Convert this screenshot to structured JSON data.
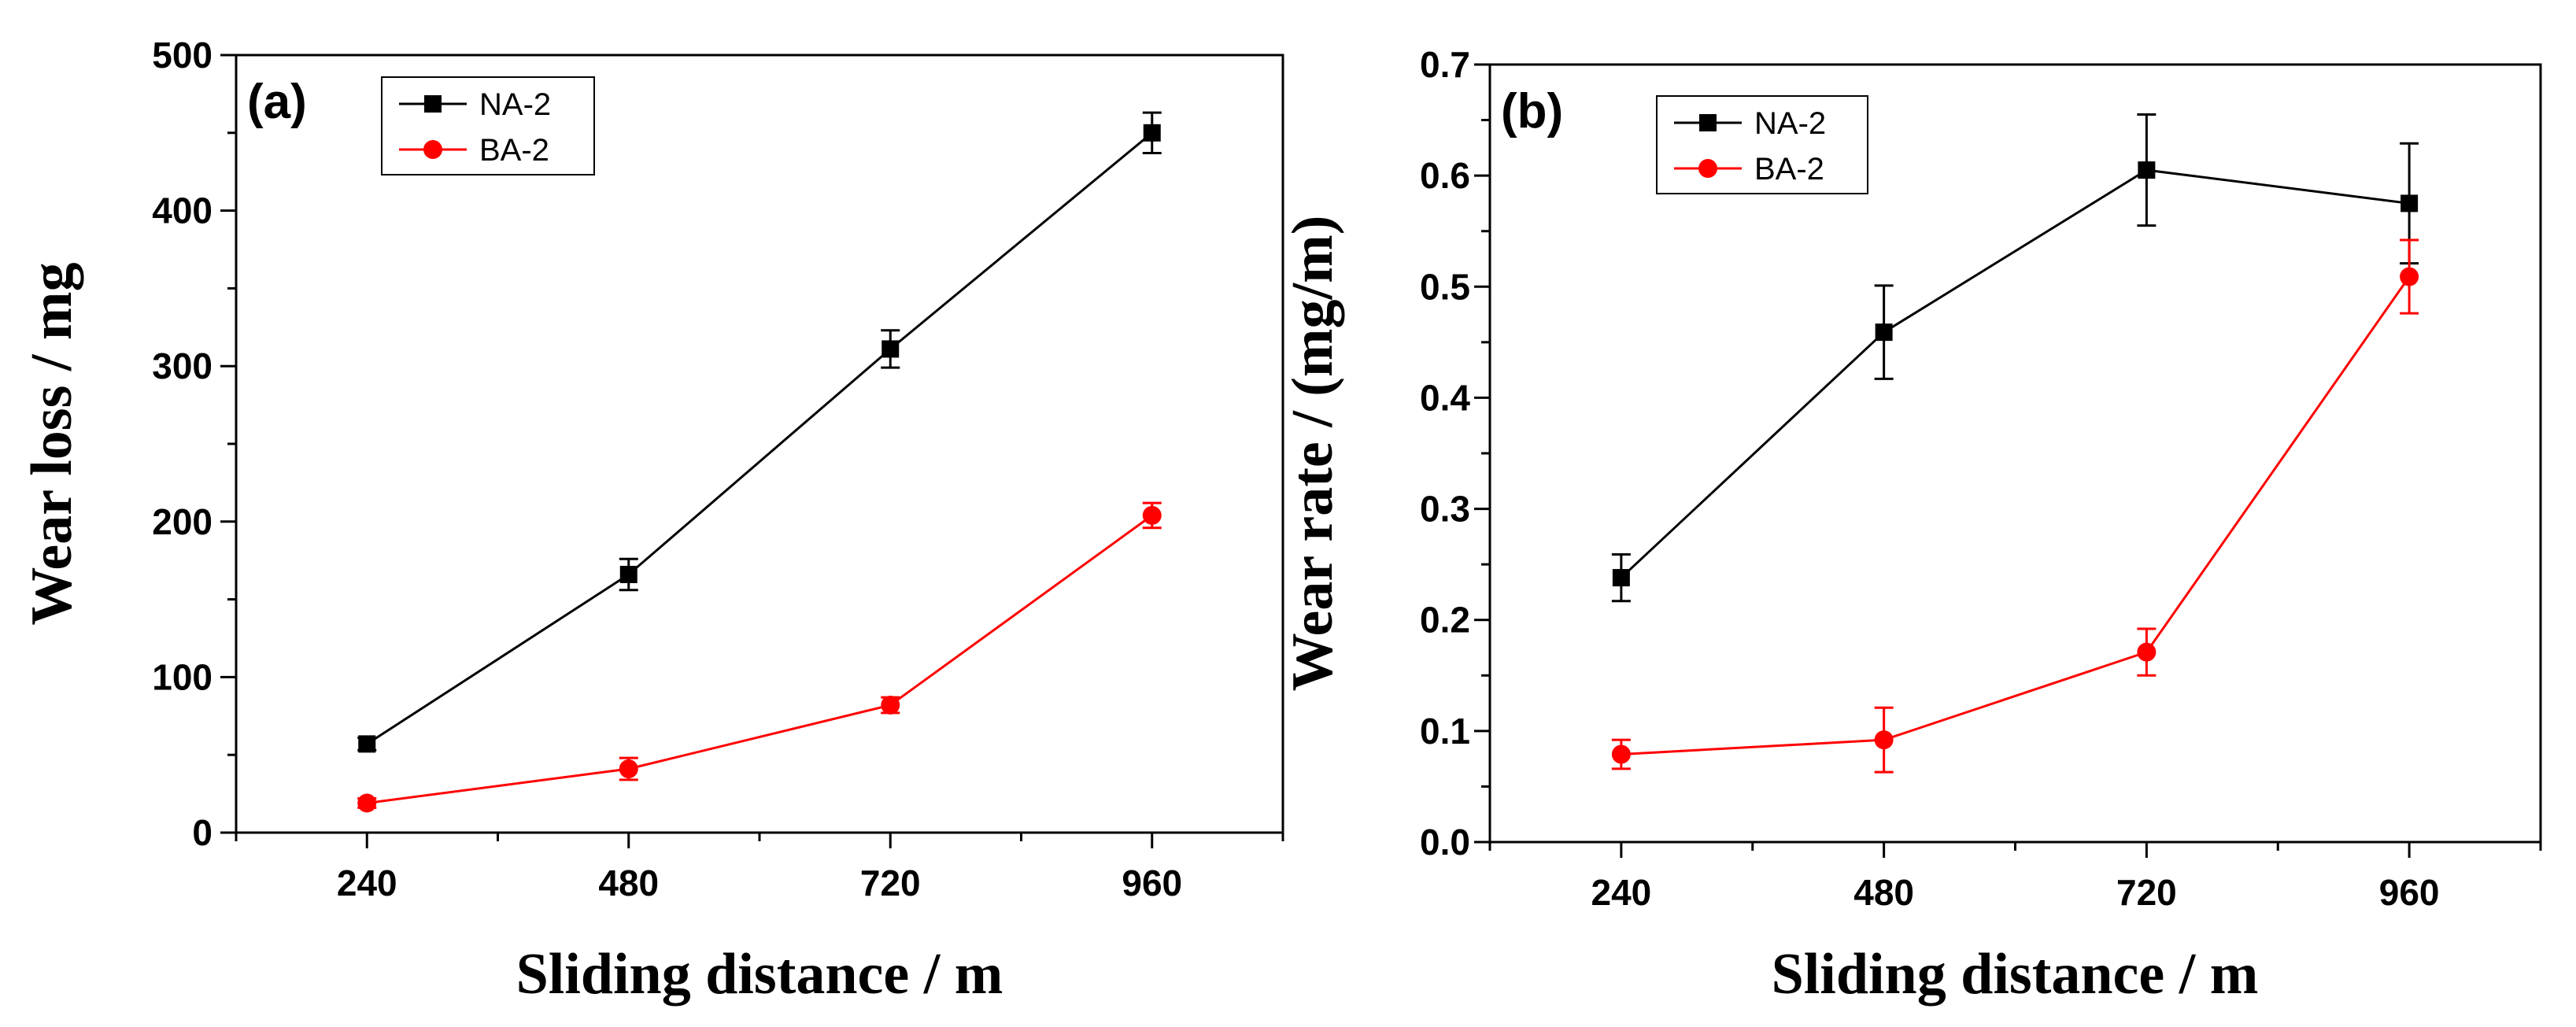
{
  "chart_data": [
    {
      "type": "line",
      "panel_label": "(a)",
      "xlabel": "Sliding distance / m",
      "ylabel": "Wear loss / mg",
      "x": [
        240,
        480,
        720,
        960
      ],
      "xticks": [
        "240",
        "480",
        "720",
        "960"
      ],
      "xlim": [
        120,
        1080
      ],
      "ylim": [
        0,
        500
      ],
      "yticks": [
        "0",
        "100",
        "200",
        "300",
        "400",
        "500"
      ],
      "legend_position": "top-left",
      "series": [
        {
          "name": "NA-2",
          "marker": "square",
          "color": "#000000",
          "values": [
            57,
            166,
            311,
            450
          ],
          "errors": [
            4,
            10,
            12,
            13
          ]
        },
        {
          "name": "BA-2",
          "marker": "circle",
          "color": "#ff0000",
          "values": [
            19,
            41,
            82,
            204
          ],
          "errors": [
            3,
            7,
            5,
            8
          ]
        }
      ]
    },
    {
      "type": "line",
      "panel_label": "(b)",
      "xlabel": "Sliding distance / m",
      "ylabel": "Wear rate / (mg/m)",
      "x": [
        240,
        480,
        720,
        960
      ],
      "xticks": [
        "240",
        "480",
        "720",
        "960"
      ],
      "xlim": [
        120,
        1080
      ],
      "ylim": [
        0,
        0.7
      ],
      "yticks": [
        "0.0",
        "0.1",
        "0.2",
        "0.3",
        "0.4",
        "0.5",
        "0.6",
        "0.7"
      ],
      "legend_position": "top-left",
      "series": [
        {
          "name": "NA-2",
          "marker": "square",
          "color": "#000000",
          "values": [
            0.238,
            0.459,
            0.605,
            0.575
          ],
          "errors": [
            0.021,
            0.042,
            0.05,
            0.054
          ]
        },
        {
          "name": "BA-2",
          "marker": "circle",
          "color": "#ff0000",
          "values": [
            0.079,
            0.092,
            0.171,
            0.509
          ],
          "errors": [
            0.013,
            0.029,
            0.021,
            0.033
          ]
        }
      ]
    }
  ]
}
